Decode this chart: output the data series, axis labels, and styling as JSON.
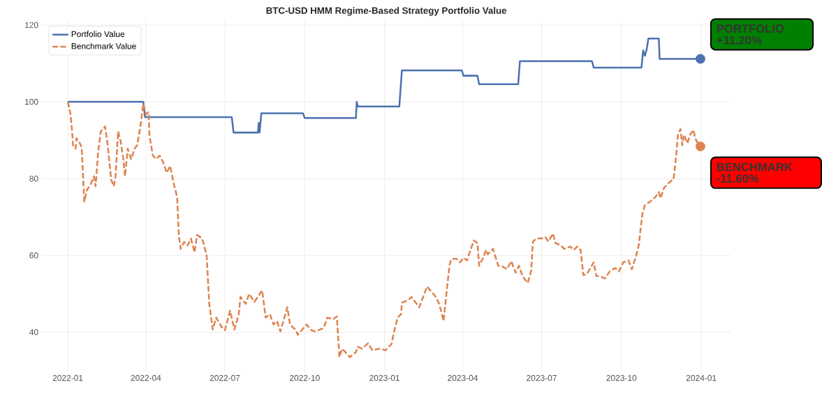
{
  "chart_data": {
    "type": "line",
    "title": "BTC-USD HMM Regime-Based Strategy Portfolio Value",
    "xlim": [
      "2021-12-02",
      "2024-02-04"
    ],
    "ylim": [
      29.7,
      121.1
    ],
    "xticks": [
      "2022-01",
      "2022-04",
      "2022-07",
      "2022-10",
      "2023-01",
      "2023-04",
      "2023-07",
      "2023-10",
      "2024-01"
    ],
    "yticks": [
      40,
      60,
      80,
      100,
      120
    ],
    "grid": true,
    "legend": "top left",
    "annotations": [
      "PORTFOLIO",
      "+11.20%",
      "BENCHMARK",
      "-11.60%"
    ],
    "series": [
      {
        "name": "Portfolio Value",
        "color": "#4c72b0",
        "line_style": "solid",
        "x": [
          "2022-01-01",
          "2022-03-29",
          "2022-03-31",
          "2022-07-09",
          "2022-07-11",
          "2022-08-08",
          "2022-08-09",
          "2022-08-10",
          "2022-08-12",
          "2022-09-29",
          "2022-10-01",
          "2022-11-29",
          "2022-11-30",
          "2022-12-01",
          "2023-01-18",
          "2023-01-21",
          "2023-03-31",
          "2023-04-02",
          "2023-04-18",
          "2023-04-20",
          "2023-06-04",
          "2023-06-06",
          "2023-08-28",
          "2023-08-30",
          "2023-10-24",
          "2023-10-26",
          "2023-10-28",
          "2023-10-30",
          "2023-11-01",
          "2023-11-13",
          "2023-11-14",
          "2023-12-31"
        ],
        "values": [
          100,
          100,
          96,
          96,
          92,
          92,
          94.5,
          92,
          97,
          97,
          95.8,
          95.8,
          100,
          98.8,
          98.8,
          108.2,
          108.2,
          106.8,
          106.8,
          104.6,
          104.6,
          110.6,
          110.6,
          108.9,
          108.9,
          113.4,
          112,
          113.6,
          116.5,
          116.5,
          111.2,
          111.2
        ]
      },
      {
        "name": "Benchmark Value",
        "color": "#dd8452",
        "line_style": "dashed",
        "x": [
          "2022-01-01",
          "2022-01-04",
          "2022-01-06",
          "2022-01-07",
          "2022-01-10",
          "2022-01-11",
          "2022-01-14",
          "2022-01-17",
          "2022-01-20",
          "2022-01-23",
          "2022-01-28",
          "2022-01-31",
          "2022-02-02",
          "2022-02-05",
          "2022-02-08",
          "2022-02-13",
          "2022-02-16",
          "2022-02-20",
          "2022-02-23",
          "2022-02-25",
          "2022-02-28",
          "2022-03-03",
          "2022-03-06",
          "2022-03-08",
          "2022-03-11",
          "2022-03-15",
          "2022-03-19",
          "2022-03-22",
          "2022-03-26",
          "2022-03-29",
          "2022-04-01",
          "2022-04-04",
          "2022-04-05",
          "2022-04-09",
          "2022-04-13",
          "2022-04-17",
          "2022-04-21",
          "2022-04-25",
          "2022-04-29",
          "2022-05-03",
          "2022-05-07",
          "2022-05-09",
          "2022-05-11",
          "2022-05-15",
          "2022-05-19",
          "2022-05-23",
          "2022-05-27",
          "2022-05-30",
          "2022-06-05",
          "2022-06-09",
          "2022-06-10",
          "2022-06-13",
          "2022-06-17",
          "2022-06-21",
          "2022-06-27",
          "2022-07-01",
          "2022-07-07",
          "2022-07-12",
          "2022-07-17",
          "2022-07-19",
          "2022-07-25",
          "2022-07-29",
          "2022-08-04",
          "2022-08-08",
          "2022-08-13",
          "2022-08-17",
          "2022-08-22",
          "2022-08-26",
          "2022-08-30",
          "2022-09-03",
          "2022-09-11",
          "2022-09-14",
          "2022-09-21",
          "2022-09-23",
          "2022-10-03",
          "2022-10-09",
          "2022-10-13",
          "2022-10-23",
          "2022-10-27",
          "2022-11-03",
          "2022-11-07",
          "2022-11-10",
          "2022-11-13",
          "2022-11-17",
          "2022-11-22",
          "2022-11-29",
          "2022-12-01",
          "2022-12-06",
          "2022-12-13",
          "2022-12-18",
          "2022-12-26",
          "2023-01-02",
          "2023-01-09",
          "2023-01-12",
          "2023-01-16",
          "2023-01-20",
          "2023-01-21",
          "2023-01-28",
          "2023-02-01",
          "2023-02-10",
          "2023-02-19",
          "2023-03-01",
          "2023-03-05",
          "2023-03-10",
          "2023-03-14",
          "2023-03-17",
          "2023-03-19",
          "2023-03-25",
          "2023-03-29",
          "2023-04-02",
          "2023-04-06",
          "2023-04-10",
          "2023-04-14",
          "2023-04-18",
          "2023-04-20",
          "2023-04-24",
          "2023-04-28",
          "2023-04-30",
          "2023-05-06",
          "2023-05-12",
          "2023-05-16",
          "2023-05-22",
          "2023-05-27",
          "2023-06-01",
          "2023-06-05",
          "2023-06-09",
          "2023-06-15",
          "2023-06-19",
          "2023-06-21",
          "2023-06-25",
          "2023-07-01",
          "2023-07-05",
          "2023-07-09",
          "2023-07-14",
          "2023-07-17",
          "2023-07-23",
          "2023-07-27",
          "2023-08-03",
          "2023-08-07",
          "2023-08-11",
          "2023-08-15",
          "2023-08-18",
          "2023-08-22",
          "2023-08-30",
          "2023-09-02",
          "2023-09-06",
          "2023-09-12",
          "2023-09-18",
          "2023-09-24",
          "2023-09-28",
          "2023-10-03",
          "2023-10-09",
          "2023-10-13",
          "2023-10-18",
          "2023-10-21",
          "2023-10-25",
          "2023-10-28",
          "2023-11-03",
          "2023-11-09",
          "2023-11-13",
          "2023-11-15",
          "2023-11-19",
          "2023-11-23",
          "2023-11-27",
          "2023-11-30",
          "2023-12-03",
          "2023-12-05",
          "2023-12-08",
          "2023-12-10",
          "2023-12-12",
          "2023-12-16",
          "2023-12-19",
          "2023-12-23",
          "2023-12-25",
          "2023-12-27",
          "2023-12-31"
        ],
        "values": [
          100,
          97,
          92.3,
          88.7,
          87.8,
          90.5,
          89.6,
          88.2,
          74,
          77,
          78.8,
          80.6,
          78,
          87,
          92.3,
          93.6,
          88.7,
          79.7,
          78,
          80.6,
          92.3,
          89.6,
          85.1,
          80.6,
          87.8,
          85.1,
          87.8,
          88.7,
          94.1,
          99.5,
          96.8,
          97.3,
          91.4,
          86,
          85.1,
          86,
          84.2,
          81.5,
          83.3,
          78.8,
          75.2,
          65.3,
          61.7,
          63.5,
          62.6,
          64.4,
          60.8,
          65.3,
          64.4,
          60.8,
          60,
          47.4,
          40.7,
          43.8,
          41.4,
          40.5,
          45.6,
          40.7,
          44.7,
          49.2,
          47.4,
          50,
          47.9,
          49.2,
          50.9,
          43.8,
          44.7,
          42,
          42.9,
          40.2,
          46.5,
          42,
          40.5,
          39.3,
          42,
          40.5,
          40.2,
          41.1,
          43.8,
          43.4,
          44.1,
          33.5,
          35.7,
          34.8,
          33.5,
          34.8,
          36.2,
          35.7,
          37.1,
          35.3,
          35.7,
          35.3,
          36.9,
          40.2,
          43.8,
          44.7,
          47.7,
          48.3,
          49.2,
          46.5,
          51.9,
          49.2,
          47.4,
          42.9,
          51.5,
          57.6,
          59.1,
          59.1,
          58.2,
          59.4,
          58.7,
          61.4,
          63.9,
          63.2,
          57.3,
          59.1,
          61.4,
          60.3,
          61.7,
          57.3,
          57.3,
          56.4,
          58.5,
          55.5,
          57.3,
          54.6,
          52.8,
          56,
          63.6,
          64.4,
          64.4,
          64.8,
          63.6,
          65.7,
          63.2,
          62.7,
          61.7,
          62.3,
          61.4,
          62.3,
          61.4,
          54.9,
          55.1,
          58.2,
          54.6,
          54.6,
          54,
          56,
          56.7,
          55.8,
          58.2,
          58.7,
          56.4,
          60,
          62.7,
          70.7,
          73.1,
          74,
          75.2,
          76.5,
          74.9,
          77.6,
          78.5,
          79.4,
          79.7,
          86,
          91.4,
          92.9,
          88.7,
          91.4,
          89.2,
          91.4,
          92.7,
          90.5,
          89.6,
          88.4
        ]
      },
      {
        "type": "scatter",
        "marker": "circle",
        "color": "#4c72b0",
        "x": [
          "2023-12-31"
        ],
        "values": [
          111.2
        ]
      },
      {
        "type": "scatter",
        "marker": "circle",
        "color": "#dd8452",
        "x": [
          "2023-12-31"
        ],
        "values": [
          88.4
        ]
      }
    ]
  }
}
